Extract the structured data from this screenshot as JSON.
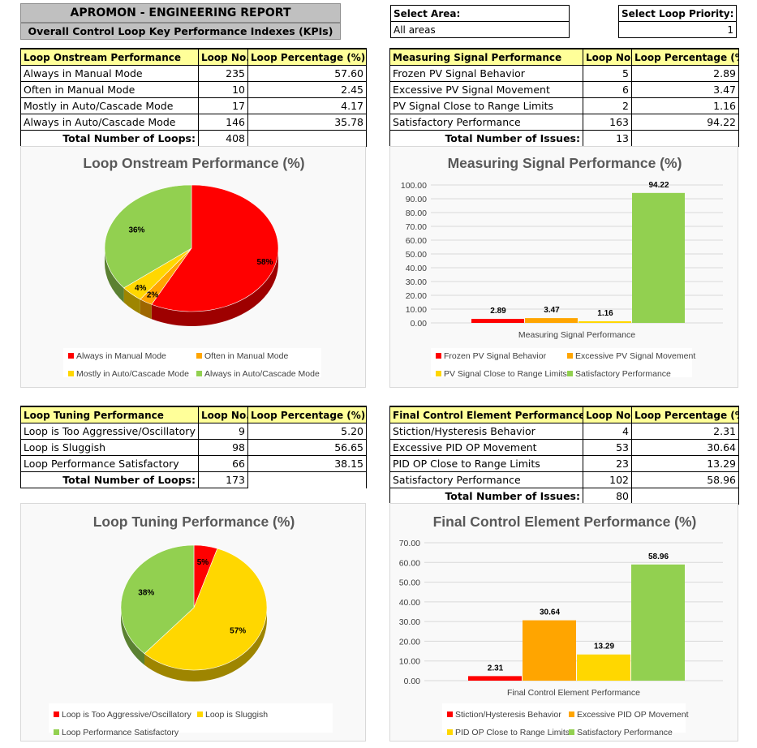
{
  "header": {
    "title": "APROMON - ENGINEERING REPORT",
    "subtitle": "Overall Control Loop Key Performance Indexes (KPIs)",
    "area_label": "Select Area:",
    "area_value": "All areas",
    "priority_label": "Select Loop Priority:",
    "priority_value": "1"
  },
  "colors": {
    "red": "#ff0000",
    "orange": "#ffa500",
    "yellow": "#ffd700",
    "green": "#92d050"
  },
  "tables": {
    "onstream": {
      "headers": [
        "Loop Onstream Performance",
        "Loop No.",
        "Loop Percentage (%)"
      ],
      "rows": [
        [
          "Always in Manual Mode",
          "235",
          "57.60"
        ],
        [
          "Often in Manual Mode",
          "10",
          "2.45"
        ],
        [
          "Mostly in Auto/Cascade Mode",
          "17",
          "4.17"
        ],
        [
          "Always in Auto/Cascade Mode",
          "146",
          "35.78"
        ]
      ],
      "total_label": "Total Number of Loops:",
      "total_value": "408"
    },
    "measuring": {
      "headers": [
        "Measuring Signal Performance",
        "Loop No.",
        "Loop Percentage (%)"
      ],
      "rows": [
        [
          "Frozen PV Signal Behavior",
          "5",
          "2.89"
        ],
        [
          "Excessive PV Signal Movement",
          "6",
          "3.47"
        ],
        [
          "PV Signal Close to Range Limits",
          "2",
          "1.16"
        ],
        [
          "Satisfactory Performance",
          "163",
          "94.22"
        ]
      ],
      "total_label": "Total Number of Issues:",
      "total_value": "13"
    },
    "tuning": {
      "headers": [
        "Loop Tuning Performance",
        "Loop No.",
        "Loop Percentage (%)"
      ],
      "rows": [
        [
          "Loop is Too Aggressive/Oscillatory",
          "9",
          "5.20"
        ],
        [
          "Loop is Sluggish",
          "98",
          "56.65"
        ],
        [
          "Loop Performance Satisfactory",
          "66",
          "38.15"
        ]
      ],
      "total_label": "Total Number of Loops:",
      "total_value": "173"
    },
    "final_element": {
      "headers": [
        "Final Control Element Performance",
        "Loop No.",
        "Loop Percentage (%)"
      ],
      "rows": [
        [
          "Stiction/Hysteresis Behavior",
          "4",
          "2.31"
        ],
        [
          "Excessive PID OP Movement",
          "53",
          "30.64"
        ],
        [
          "PID OP Close to Range Limits",
          "23",
          "13.29"
        ],
        [
          "Satisfactory Performance",
          "102",
          "58.96"
        ]
      ],
      "total_label": "Total Number of Issues:",
      "total_value": "80"
    }
  },
  "chart_data": [
    {
      "id": "onstream",
      "type": "pie",
      "title": "Loop Onstream Performance (%)",
      "categories": [
        "Always in Manual Mode",
        "Often in Manual Mode",
        "Mostly in Auto/Cascade Mode",
        "Always in Auto/Cascade Mode"
      ],
      "values": [
        57.6,
        2.45,
        4.17,
        35.78
      ],
      "labels": [
        "58%",
        "2%",
        "4%",
        "36%"
      ],
      "colors": [
        "#ff0000",
        "#ffa500",
        "#ffd700",
        "#92d050"
      ],
      "legend": "bottom"
    },
    {
      "id": "measuring",
      "type": "bar",
      "title": "Measuring Signal Performance (%)",
      "xlabel": "Measuring Signal Performance",
      "series": [
        {
          "name": "Frozen PV Signal Behavior",
          "values": [
            2.89
          ],
          "label": "2.89",
          "color": "#ff0000"
        },
        {
          "name": "Excessive PV Signal Movement",
          "values": [
            3.47
          ],
          "label": "3.47",
          "color": "#ffa500"
        },
        {
          "name": "PV Signal Close to Range Limits",
          "values": [
            1.16
          ],
          "label": "1.16",
          "color": "#ffd700"
        },
        {
          "name": "Satisfactory Performance",
          "values": [
            94.22
          ],
          "label": "94.22",
          "color": "#92d050"
        }
      ],
      "ylim": [
        0,
        100
      ],
      "ticks": [
        "0.00",
        "10.00",
        "20.00",
        "30.00",
        "40.00",
        "50.00",
        "60.00",
        "70.00",
        "80.00",
        "90.00",
        "100.00"
      ],
      "tick_values": [
        0,
        10,
        20,
        30,
        40,
        50,
        60,
        70,
        80,
        90,
        100
      ],
      "grid": true,
      "legend": "bottom"
    },
    {
      "id": "tuning",
      "type": "pie",
      "title": "Loop Tuning Performance (%)",
      "categories": [
        "Loop is Too Aggressive/Oscillatory",
        "Loop is Sluggish",
        "Loop Performance Satisfactory"
      ],
      "values": [
        5.2,
        56.65,
        38.15
      ],
      "labels": [
        "5%",
        "57%",
        "38%"
      ],
      "colors": [
        "#ff0000",
        "#ffd700",
        "#92d050"
      ],
      "legend": "bottom"
    },
    {
      "id": "final_element",
      "type": "bar",
      "title": "Final Control Element Performance (%)",
      "xlabel": "Final Control Element Performance",
      "series": [
        {
          "name": "Stiction/Hysteresis Behavior",
          "values": [
            2.31
          ],
          "label": "2.31",
          "color": "#ff0000"
        },
        {
          "name": "Excessive PID OP Movement",
          "values": [
            30.64
          ],
          "label": "30.64",
          "color": "#ffa500"
        },
        {
          "name": "PID OP Close to Range Limits",
          "values": [
            13.29
          ],
          "label": "13.29",
          "color": "#ffd700"
        },
        {
          "name": "Satisfactory Performance",
          "values": [
            58.96
          ],
          "label": "58.96",
          "color": "#92d050"
        }
      ],
      "ylim": [
        0,
        70
      ],
      "ticks": [
        "0.00",
        "10.00",
        "20.00",
        "30.00",
        "40.00",
        "50.00",
        "60.00",
        "70.00"
      ],
      "tick_values": [
        0,
        10,
        20,
        30,
        40,
        50,
        60,
        70
      ],
      "grid": true,
      "legend": "bottom"
    }
  ]
}
